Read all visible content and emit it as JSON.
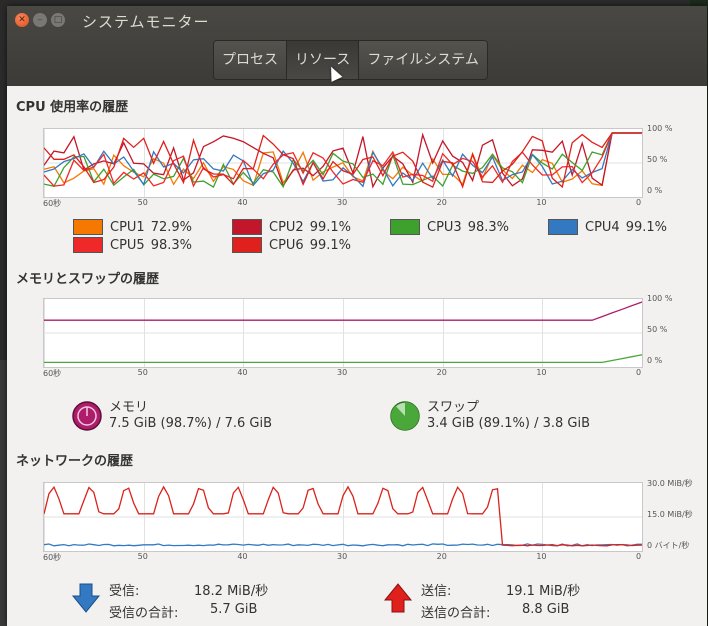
{
  "window": {
    "title": "システムモニター"
  },
  "tabs": [
    {
      "label": "プロセス"
    },
    {
      "label": "リソース"
    },
    {
      "label": "ファイルシステム"
    }
  ],
  "cpu": {
    "heading": "CPU 使用率の履歴",
    "x_ticks": [
      "60秒",
      "50",
      "40",
      "30",
      "20",
      "10",
      "0"
    ],
    "y_ticks": [
      "100 %",
      "50 %",
      "0 %"
    ],
    "legend": [
      {
        "name": "CPU1",
        "value": "72.9%",
        "color": "#f57900"
      },
      {
        "name": "CPU2",
        "value": "99.1%",
        "color": "#c4162a"
      },
      {
        "name": "CPU3",
        "value": "98.3%",
        "color": "#3ea12e"
      },
      {
        "name": "CPU4",
        "value": "99.1%",
        "color": "#3379c1"
      },
      {
        "name": "CPU5",
        "value": "98.3%",
        "color": "#ef2929"
      },
      {
        "name": "CPU6",
        "value": "99.1%",
        "color": "#e0201d"
      }
    ]
  },
  "memory": {
    "heading": "メモリとスワップの履歴",
    "x_ticks": [
      "60秒",
      "50",
      "40",
      "30",
      "20",
      "10",
      "0"
    ],
    "y_ticks": [
      "100 %",
      "50 %",
      "0 %"
    ],
    "mem_label": "メモリ",
    "mem_value": "7.5 GiB (98.7%) / 7.6 GiB",
    "mem_fraction": 0.987,
    "mem_color": "#ad1d6b",
    "swap_label": "スワップ",
    "swap_value": "3.4 GiB (89.1%) / 3.8 GiB",
    "swap_fraction": 0.891,
    "swap_color": "#4aa83a"
  },
  "network": {
    "heading": "ネットワークの履歴",
    "x_ticks": [
      "60秒",
      "50",
      "40",
      "30",
      "20",
      "10",
      "0"
    ],
    "y_ticks": [
      "30.0 MiB/秒",
      "15.0 MiB/秒",
      "0 バイト/秒"
    ],
    "recv_label": "受信:",
    "recv_value": "18.2 MiB/秒",
    "recv_total_label": "受信の合計:",
    "recv_total_value": "5.7 GiB",
    "send_label": "送信:",
    "send_value": "19.1 MiB/秒",
    "send_total_label": "送信の合計:",
    "send_total_value": "8.8 GiB",
    "recv_color": "#3379c1",
    "send_color": "#d9231b"
  }
}
